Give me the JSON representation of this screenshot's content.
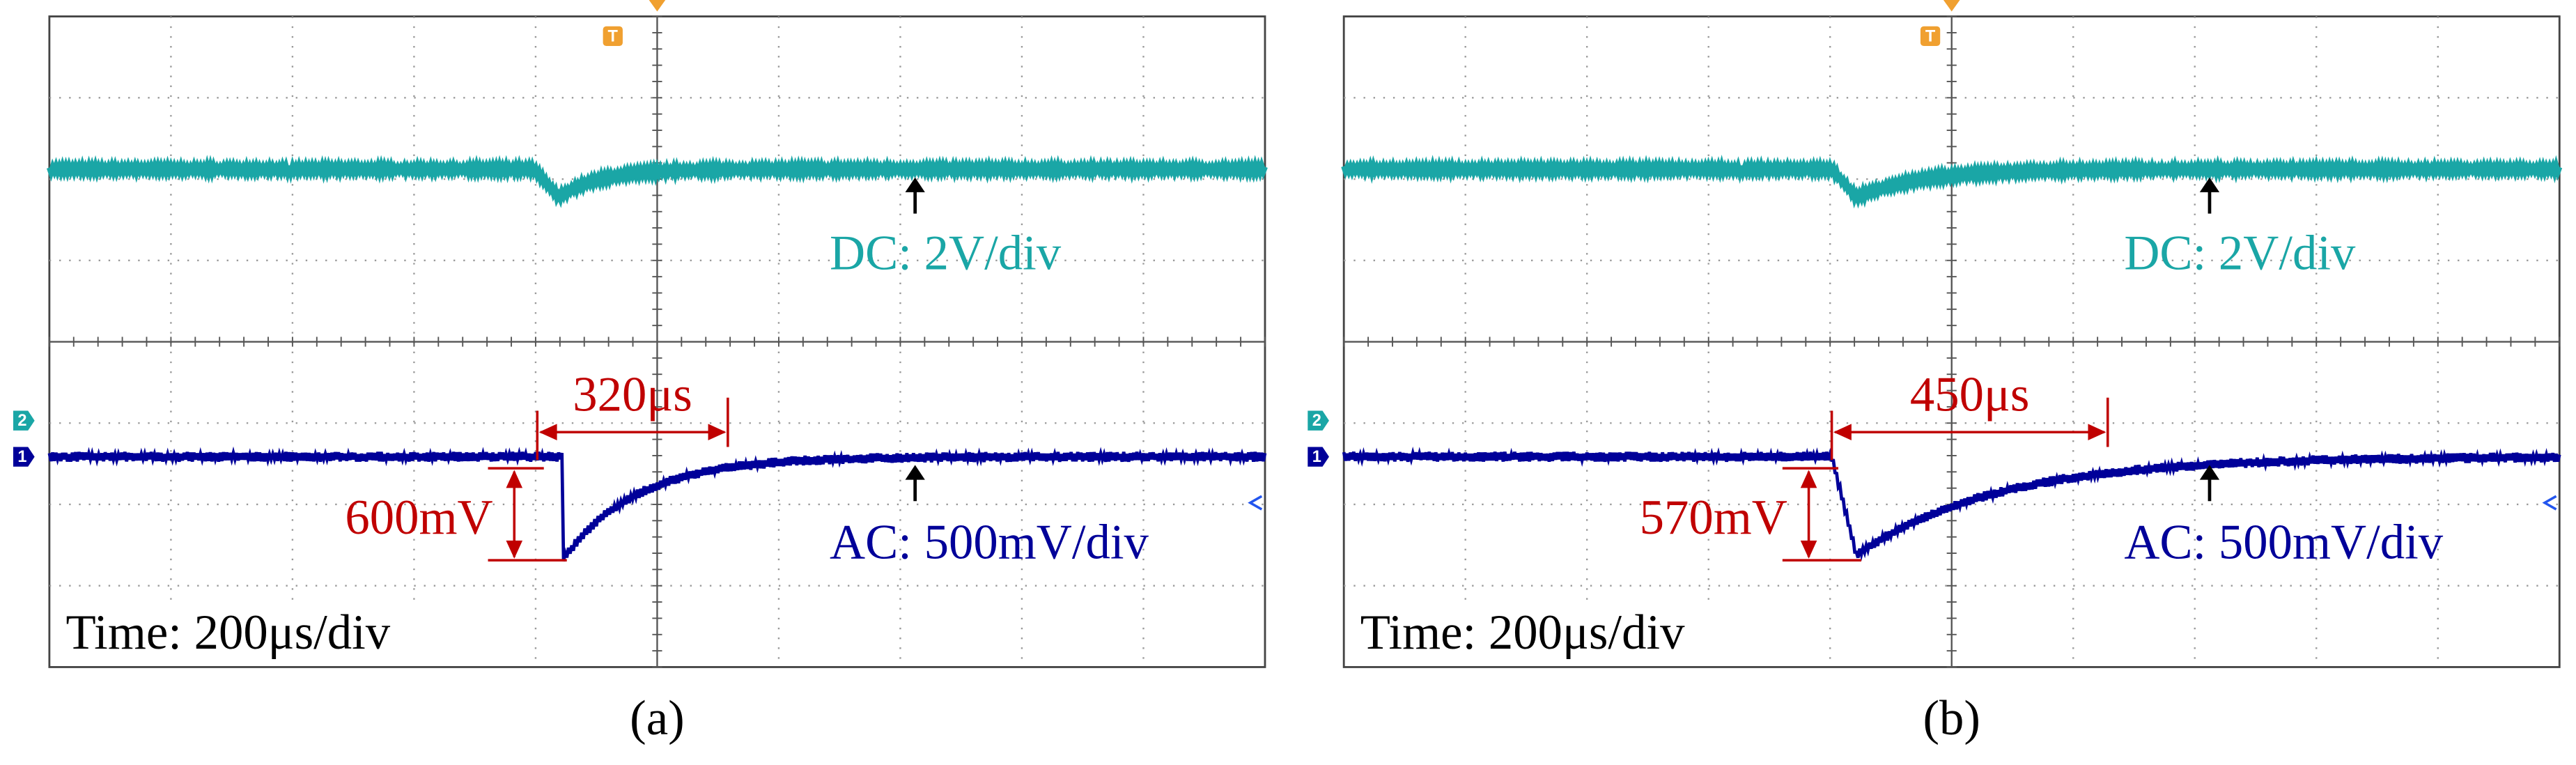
{
  "panels": [
    {
      "label": "(a)",
      "trigger": "T",
      "channels": [
        "2",
        "1"
      ],
      "dc_label": "DC: 2V/div",
      "ac_label": "AC: 500mV/div",
      "time_label": "Time: 200μs/div",
      "delta_t": "320μs",
      "delta_v": "600mV"
    },
    {
      "label": "(b)",
      "trigger": "T",
      "channels": [
        "2",
        "1"
      ],
      "dc_label": "DC: 2V/div",
      "ac_label": "AC: 500mV/div",
      "time_label": "Time: 200μs/div",
      "delta_t": "450μs",
      "delta_v": "570mV"
    }
  ]
}
